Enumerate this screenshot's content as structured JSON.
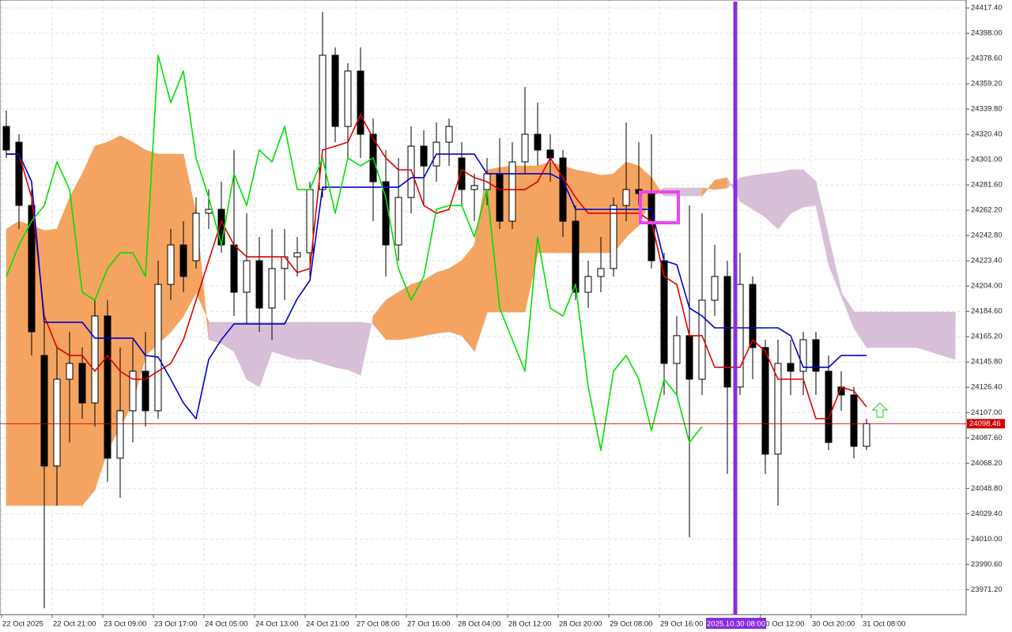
{
  "chart_data": {
    "type": "candlestick",
    "categories": [
      "22 Oct 2025",
      null,
      null,
      null,
      "22 Oct 21:00",
      null,
      null,
      null,
      "23 Oct 09:00",
      null,
      null,
      null,
      "23 Oct 17:00",
      null,
      null,
      null,
      "24 Oct 05:00",
      null,
      null,
      null,
      "24 Oct 13:00",
      null,
      null,
      null,
      "24 Oct 21:00",
      null,
      null,
      null,
      "27 Oct 08:00",
      null,
      null,
      null,
      "27 Oct 16:00",
      null,
      null,
      null,
      "28 Oct 04:00",
      null,
      null,
      null,
      "28 Oct 12:00",
      null,
      null,
      null,
      "28 Oct 20:00",
      null,
      null,
      null,
      "29 Oct 08:00",
      null,
      null,
      null,
      "29 Oct 16:00",
      null,
      null,
      null,
      null,
      null,
      null,
      null,
      "30 Oct 12:00",
      null,
      null,
      null,
      "30 Oct 20:00",
      null,
      null,
      null,
      "31 Oct 08:00",
      null,
      null,
      null,
      null,
      null,
      null,
      null
    ],
    "open": [
      24326.5,
      24314.4,
      24265.9,
      24150.8,
      24066.0,
      24132.6,
      24144.7,
      24114.4,
      24181.1,
      24072.0,
      24108.4,
      24138.7,
      24108.4,
      24205.3,
      24235.6,
      24223.5,
      24259.9,
      24262.9,
      24235.6,
      24199.3,
      24223.5,
      24187.2,
      24217.5,
      24226.5,
      24229.6,
      24278.1,
      24381.1,
      24326.5,
      24369.0,
      24320.5,
      24284.1,
      24235.6,
      24272.0,
      24311.4,
      24296.2,
      24314.4,
      24302.3,
      24278.1,
      24278.1,
      24290.2,
      24253.8,
      24299.3,
      24320.5,
      24308.4,
      24302.3,
      24253.8,
      24199.3,
      24211.4,
      24217.5,
      24265.9,
      24278.1,
      24275.0,
      24223.5,
      24144.7,
      24166.0,
      24132.6,
      24193.2,
      24211.4,
      24126.6,
      24205.3,
      24156.9,
      24075.1,
      24144.7,
      24138.7,
      24162.9,
      24138.7,
      24126.6,
      24120.5,
      24081.1,
      null,
      null,
      null,
      null,
      null,
      null,
      null
    ],
    "high": [
      24338.7,
      24320.5,
      24278.1,
      24181.1,
      24156.9,
      24169.0,
      24156.9,
      24193.2,
      24193.2,
      24156.9,
      24162.9,
      24169.0,
      24223.5,
      24247.8,
      24253.8,
      24272.0,
      24278.1,
      24284.1,
      24308.4,
      24259.9,
      24241.7,
      24247.8,
      24247.8,
      24241.7,
      24284.1,
      24414.4,
      24387.1,
      24375.0,
      24387.1,
      24332.6,
      24308.4,
      24302.3,
      24326.5,
      24323.5,
      24329.6,
      24332.6,
      24314.4,
      24290.2,
      24302.3,
      24317.4,
      24314.4,
      24356.8,
      24344.7,
      24320.5,
      24308.4,
      24265.9,
      24223.5,
      24241.7,
      24272.0,
      24329.6,
      24314.4,
      24320.5,
      24229.6,
      24181.1,
      24265.9,
      24259.9,
      24235.6,
      24223.5,
      24229.6,
      24211.4,
      24162.9,
      24162.9,
      24162.9,
      24169.0,
      24169.0,
      24150.8,
      24138.7,
      24126.6,
      24102.3,
      null,
      null,
      null,
      null,
      null,
      null,
      null
    ],
    "low": [
      24302.3,
      24247.8,
      24150.8,
      23956.9,
      24035.7,
      24084.1,
      24102.3,
      24096.3,
      24053.8,
      24041.7,
      24084.1,
      24096.3,
      24102.3,
      24193.2,
      24199.3,
      24217.5,
      24247.8,
      24229.6,
      24181.1,
      24175.0,
      24169.0,
      24162.9,
      24193.2,
      24211.4,
      24211.4,
      24272.0,
      24314.4,
      24302.3,
      24302.3,
      24253.8,
      24211.4,
      24223.5,
      24259.9,
      24265.9,
      24284.1,
      24296.2,
      24265.9,
      24253.8,
      24265.9,
      24247.8,
      24247.8,
      24290.2,
      24296.2,
      24284.1,
      24241.7,
      24193.2,
      24187.2,
      24199.3,
      24211.4,
      24253.8,
      24265.9,
      24217.5,
      24120.5,
      24120.5,
      24011.4,
      24120.5,
      24181.1,
      24059.9,
      24120.5,
      24132.6,
      24059.9,
      24035.7,
      24120.5,
      24120.5,
      24120.5,
      24078.1,
      24108.4,
      24072.0,
      24078.1,
      null,
      null,
      null,
      null,
      null,
      null,
      null
    ],
    "close": [
      24308.4,
      24265.9,
      24169.0,
      24066.0,
      24132.6,
      24144.7,
      24114.4,
      24181.1,
      24072.0,
      24108.4,
      24138.7,
      24108.4,
      24205.3,
      24235.6,
      24211.4,
      24259.9,
      24262.9,
      24235.6,
      24199.3,
      24223.5,
      24187.2,
      24217.5,
      24226.5,
      24229.6,
      24278.1,
      24381.1,
      24326.5,
      24369.0,
      24320.5,
      24284.1,
      24235.6,
      24272.0,
      24311.4,
      24296.2,
      24314.4,
      24326.5,
      24278.1,
      24281.1,
      24290.2,
      24253.8,
      24299.3,
      24320.5,
      24308.4,
      24302.3,
      24253.8,
      24199.3,
      24211.4,
      24217.5,
      24265.9,
      24278.1,
      24275.0,
      24223.5,
      24144.7,
      24166.0,
      24132.6,
      24193.2,
      24211.4,
      24126.6,
      24205.3,
      24156.9,
      24075.1,
      24144.7,
      24138.7,
      24162.9,
      24138.7,
      24084.1,
      24120.5,
      24081.1,
      24098.46,
      null,
      null,
      null,
      null,
      null,
      null,
      null
    ],
    "up_color": "#ffffff",
    "down_color": "#000000",
    "lines": [
      {
        "color": "#e00000",
        "values": [
          24305.3,
          24305.3,
          24272.0,
          24181.1,
          24156.9,
          24150.8,
          24150.8,
          24138.7,
          24150.8,
          24138.7,
          24132.6,
          24132.6,
          24138.7,
          24144.7,
          24162.9,
          24193.2,
          24223.5,
          24253.8,
          24235.6,
          24226.5,
          24226.5,
          24226.5,
          24226.5,
          24214.4,
          24217.5,
          24308.4,
          24311.4,
          24314.4,
          24335.6,
          24317.4,
          24302.3,
          24293.2,
          24293.2,
          24265.9,
          24259.9,
          24262.9,
          24293.2,
          24287.2,
          24284.1,
          24278.1,
          24278.1,
          24278.1,
          24284.1,
          24302.3,
          24287.2,
          24272.0,
          24259.9,
          24259.9,
          24259.9,
          24259.9,
          24259.9,
          24253.8,
          24211.4,
          24205.3,
          24166.0,
          24166.0,
          24141.7,
          24141.7,
          24141.7,
          24162.9,
          24153.8,
          24132.6,
          24132.6,
          24132.6,
          24102.3,
          24102.3,
          24126.6,
          24123.5,
          24111.4,
          null,
          null,
          null,
          null,
          null,
          null,
          null
        ]
      },
      {
        "color": "#0000c8",
        "values": [
          24305.3,
          24305.3,
          24284.1,
          24176.3,
          24176.3,
          24176.3,
          24176.3,
          24164.1,
          24164.1,
          24164.1,
          24164.1,
          24150.8,
          24149.6,
          24132.6,
          24114.4,
          24102.3,
          24147.8,
          24162.9,
          24175.0,
          24175.0,
          24175.0,
          24175.0,
          24175.0,
          24194.4,
          24208.4,
          24279.9,
          24279.9,
          24279.9,
          24279.9,
          24279.9,
          24279.9,
          24279.9,
          24287.2,
          24287.2,
          24305.3,
          24305.3,
          24305.3,
          24305.3,
          24290.2,
          24290.2,
          24290.2,
          24290.2,
          24290.2,
          24290.2,
          24285.3,
          24262.9,
          24262.9,
          24262.9,
          24262.9,
          24262.9,
          24262.9,
          24262.9,
          24223.5,
          24220.5,
          24187.2,
          24181.1,
          24172.0,
          24172.0,
          24172.0,
          24172.0,
          24172.0,
          24172.0,
          24166.0,
          24141.7,
          24141.7,
          24141.7,
          24150.8,
          24150.8,
          24150.8,
          null,
          null,
          null,
          null,
          null,
          null,
          null
        ]
      },
      {
        "color": "#00e000",
        "values": [
          24211.4,
          24235.6,
          24253.8,
          24265.9,
          24299.3,
          24278.1,
          24199.3,
          24193.2,
          24217.5,
          24229.6,
          24229.6,
          24211.4,
          24381.1,
          24344.7,
          24369.0,
          24302.3,
          24272.0,
          24235.6,
          24290.2,
          24265.9,
          24308.4,
          24299.3,
          24326.5,
          24278.1,
          24278.1,
          24302.3,
          24259.9,
          24302.3,
          24296.2,
          24302.3,
          24272.0,
          24217.5,
          24193.2,
          24211.4,
          24262.9,
          24265.9,
          24265.9,
          24241.7,
          24278.1,
          24187.2,
          24162.9,
          24138.7,
          24241.7,
          24187.2,
          24181.1,
          24205.3,
          24126.6,
          24078.1,
          24138.7,
          24150.8,
          24132.6,
          24093.2,
          24132.6,
          24120.5,
          24084.1,
          24096.3,
          null,
          null,
          null,
          null,
          null,
          null,
          null,
          null,
          null,
          null,
          null,
          null,
          null,
          null,
          null,
          null,
          null,
          null,
          null,
          null
        ]
      }
    ],
    "cloud": {
      "up_color": "#f4a460",
      "down_color": "#d8bfd8",
      "span_a": [
        24247.8,
        24253.8,
        24250.8,
        24246.6,
        24247.8,
        24272.0,
        24290.2,
        24311.4,
        24314.4,
        24319.3,
        24314.4,
        24308.4,
        24305.3,
        24305.3,
        24305.3,
        24259.9,
        24162.9,
        24159.9,
        24153.8,
        24132.6,
        24126.6,
        24153.8,
        24150.8,
        24147.8,
        24147.8,
        24144.7,
        24141.7,
        24139.9,
        24135.7,
        24181.1,
        24193.2,
        24199.3,
        24205.3,
        24208.4,
        24214.4,
        24217.5,
        24223.5,
        24235.6,
        24293.2,
        24295.0,
        24296.2,
        24296.2,
        24296.2,
        24299.3,
        24296.2,
        24293.2,
        24291.4,
        24289.0,
        24290.2,
        24299.3,
        24296.2,
        24287.2,
        24273.2,
        24273.2,
        24273.2,
        24273.2,
        24285.3,
        24287.2,
        24269.0,
        24262.9,
        24256.9,
        24247.8,
        24259.9,
        24264.7,
        24265.9,
        24220.5,
        24196.3,
        24172.0,
        24156.9,
        24156.9,
        24156.9,
        24156.9,
        24156.9,
        24153.8,
        24150.8,
        24147.8
      ],
      "span_b": [
        24035.7,
        24035.7,
        24035.7,
        24035.7,
        24035.7,
        24035.7,
        24035.7,
        24047.8,
        24078.1,
        24096.3,
        24114.4,
        24150.8,
        24159.9,
        24169.0,
        24181.1,
        24199.3,
        24176.3,
        24176.3,
        24176.3,
        24176.3,
        24176.3,
        24176.3,
        24176.3,
        24176.3,
        24176.3,
        24176.3,
        24176.3,
        24176.3,
        24176.3,
        24175.0,
        24162.9,
        24162.9,
        24164.1,
        24166.0,
        24167.8,
        24169.0,
        24166.0,
        24153.8,
        24184.1,
        24184.1,
        24184.1,
        24184.1,
        24229.6,
        24229.6,
        24229.6,
        24229.6,
        24229.6,
        24229.6,
        24229.6,
        24241.7,
        24250.8,
        24272.0,
        24279.3,
        24279.3,
        24279.3,
        24279.3,
        24278.1,
        24279.3,
        24287.2,
        24289.0,
        24290.2,
        24291.4,
        24293.2,
        24293.2,
        24284.1,
        24241.7,
        24199.3,
        24184.1,
        24184.1,
        24184.1,
        24184.1,
        24184.1,
        24184.1,
        24184.1,
        24184.1,
        24184.1
      ]
    },
    "ylim": [
      23952.0,
      24423.5
    ],
    "yticks": [
      {
        "value": 24417.4,
        "label": "24417.40"
      },
      {
        "value": 24398,
        "label": "24398.00"
      },
      {
        "value": 24378.6,
        "label": "24378.60"
      },
      {
        "value": 24359.2,
        "label": "24359.20"
      },
      {
        "value": 24339.8,
        "label": "24339.80"
      },
      {
        "value": 24320.4,
        "label": "24320.40"
      },
      {
        "value": 24301,
        "label": "24301.00"
      },
      {
        "value": 24281.6,
        "label": "24281.60"
      },
      {
        "value": 24262.2,
        "label": "24262.20"
      },
      {
        "value": 24242.8,
        "label": "24242.80"
      },
      {
        "value": 24223.4,
        "label": "24223.40"
      },
      {
        "value": 24204,
        "label": "24204.00"
      },
      {
        "value": 24184.6,
        "label": "24184.60"
      },
      {
        "value": 24165.2,
        "label": "24165.20"
      },
      {
        "value": 24145.8,
        "label": "24145.80"
      },
      {
        "value": 24126.4,
        "label": "24126.40"
      },
      {
        "value": 24107,
        "label": "24107.00"
      },
      {
        "value": 24087.6,
        "label": "24087.60"
      },
      {
        "value": 24068.2,
        "label": "24068.20"
      },
      {
        "value": 24048.8,
        "label": "24048.80"
      },
      {
        "value": 24029.4,
        "label": "24029.40"
      },
      {
        "value": 24010,
        "label": "24010.00"
      },
      {
        "value": 23990.6,
        "label": "23990.60"
      },
      {
        "value": 23971.2,
        "label": "23971.20"
      }
    ],
    "grid": true,
    "price_line_color": "#d00000",
    "crosshair_label": "2025.10.30 08:00"
  }
}
